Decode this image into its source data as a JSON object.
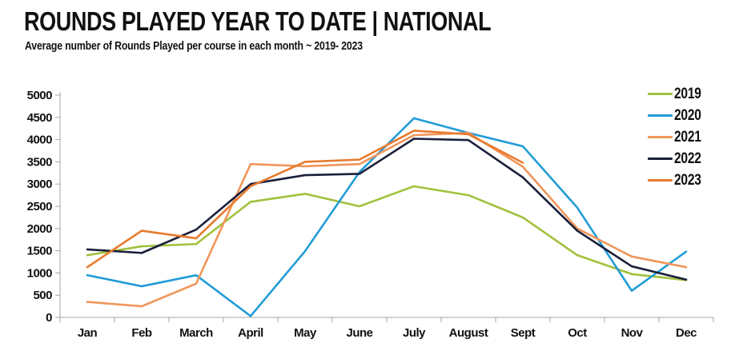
{
  "header": {
    "title": "ROUNDS PLAYED YEAR TO DATE | NATIONAL",
    "subtitle": "Average number of Rounds Played per course in each month ~ 2019- 2023"
  },
  "colors": {
    "text": "#111111",
    "axis": "#a6a6a6",
    "background": "#ffffff"
  },
  "chart_data": {
    "type": "line",
    "title": "ROUNDS PLAYED YEAR TO DATE | NATIONAL",
    "subtitle": "Average number of Rounds Played per course in each month ~ 2019- 2023",
    "categories": [
      "Jan",
      "Feb",
      "March",
      "April",
      "May",
      "June",
      "July",
      "August",
      "Sept",
      "Oct",
      "Nov",
      "Dec"
    ],
    "series": [
      {
        "name": "2019",
        "color": "#a2c13c",
        "values": [
          1400,
          1600,
          1650,
          2600,
          2780,
          2500,
          2950,
          2750,
          2250,
          1400,
          975,
          840
        ]
      },
      {
        "name": "2020",
        "color": "#219cd7",
        "values": [
          950,
          700,
          950,
          30,
          1490,
          3270,
          4480,
          4150,
          3850,
          2470,
          600,
          1480
        ]
      },
      {
        "name": "2021",
        "color": "#f0965a",
        "values": [
          350,
          250,
          760,
          3450,
          3400,
          3450,
          4100,
          4150,
          3390,
          2000,
          1370,
          1130
        ]
      },
      {
        "name": "2022",
        "color": "#1a1f3a",
        "values": [
          1530,
          1450,
          1975,
          3000,
          3200,
          3230,
          4020,
          3990,
          3150,
          1950,
          1150,
          850
        ]
      },
      {
        "name": "2023",
        "color": "#e87a2e",
        "values": [
          1130,
          1950,
          1780,
          2950,
          3500,
          3550,
          4200,
          4120,
          3480,
          null,
          null,
          null
        ]
      }
    ],
    "ylim": [
      0,
      5000
    ],
    "yticks": [
      0,
      500,
      1000,
      1500,
      2000,
      2500,
      3000,
      3500,
      4000,
      4500,
      5000
    ],
    "xlabel": "",
    "ylabel": "",
    "grid": false,
    "legend_position": "top-right"
  }
}
